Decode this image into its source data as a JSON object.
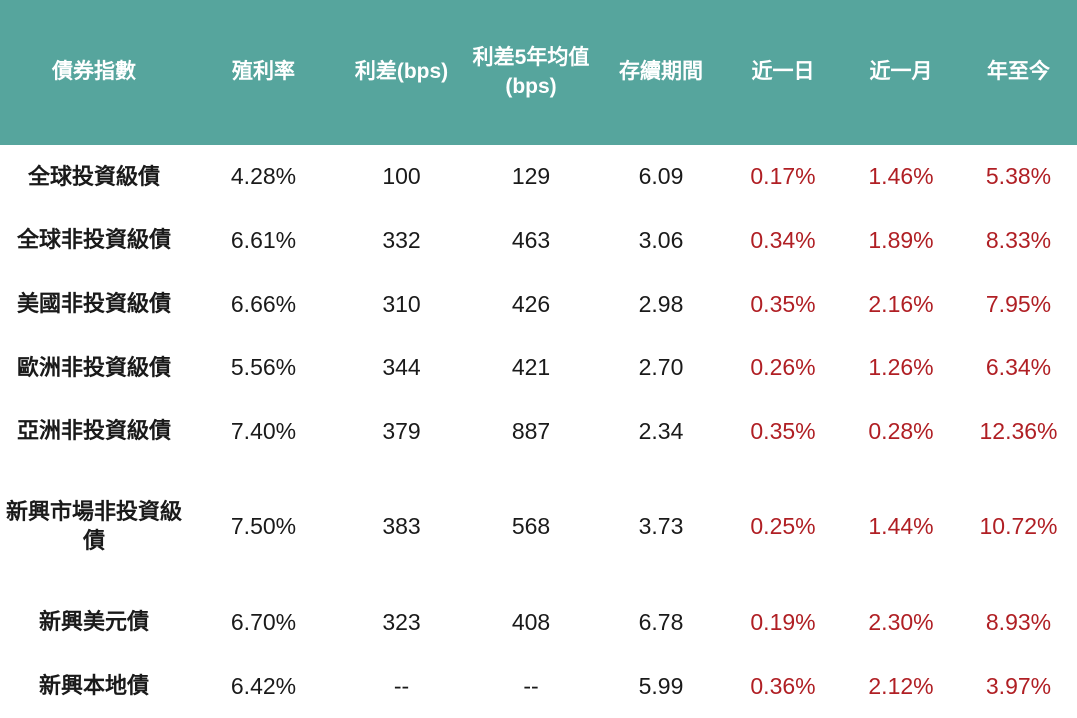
{
  "colors": {
    "header_bg": "#56a59d",
    "header_text": "#ffffff",
    "body_text": "#1a1a1a",
    "negative_red": "#b01f24",
    "background": "#ffffff"
  },
  "chart_data": {
    "type": "table",
    "title": "",
    "columns": [
      "債券指數",
      "殖利率",
      "利差(bps)",
      "利差5年均值\n(bps)",
      "存續期間",
      "近一日",
      "近一月",
      "年至今"
    ],
    "column_keys": [
      "bond-index",
      "yield",
      "spread-bps",
      "spread-5y-avg-bps",
      "duration",
      "change-1d",
      "change-1m",
      "change-ytd"
    ],
    "red_value_columns": [
      5,
      6,
      7
    ],
    "rows": [
      [
        "全球投資級債",
        "4.28%",
        "100",
        "129",
        "6.09",
        "0.17%",
        "1.46%",
        "5.38%"
      ],
      [
        "全球非投資級債",
        "6.61%",
        "332",
        "463",
        "3.06",
        "0.34%",
        "1.89%",
        "8.33%"
      ],
      [
        "美國非投資級債",
        "6.66%",
        "310",
        "426",
        "2.98",
        "0.35%",
        "2.16%",
        "7.95%"
      ],
      [
        "歐洲非投資級債",
        "5.56%",
        "344",
        "421",
        "2.70",
        "0.26%",
        "1.26%",
        "6.34%"
      ],
      [
        "亞洲非投資級債",
        "7.40%",
        "379",
        "887",
        "2.34",
        "0.35%",
        "0.28%",
        "12.36%"
      ],
      [
        "新興市場非投資級債",
        "7.50%",
        "383",
        "568",
        "3.73",
        "0.25%",
        "1.44%",
        "10.72%"
      ],
      [
        "新興美元債",
        "6.70%",
        "323",
        "408",
        "6.78",
        "0.19%",
        "2.30%",
        "8.93%"
      ],
      [
        "新興本地債",
        "6.42%",
        "--",
        "--",
        "5.99",
        "0.36%",
        "2.12%",
        "3.97%"
      ]
    ]
  }
}
